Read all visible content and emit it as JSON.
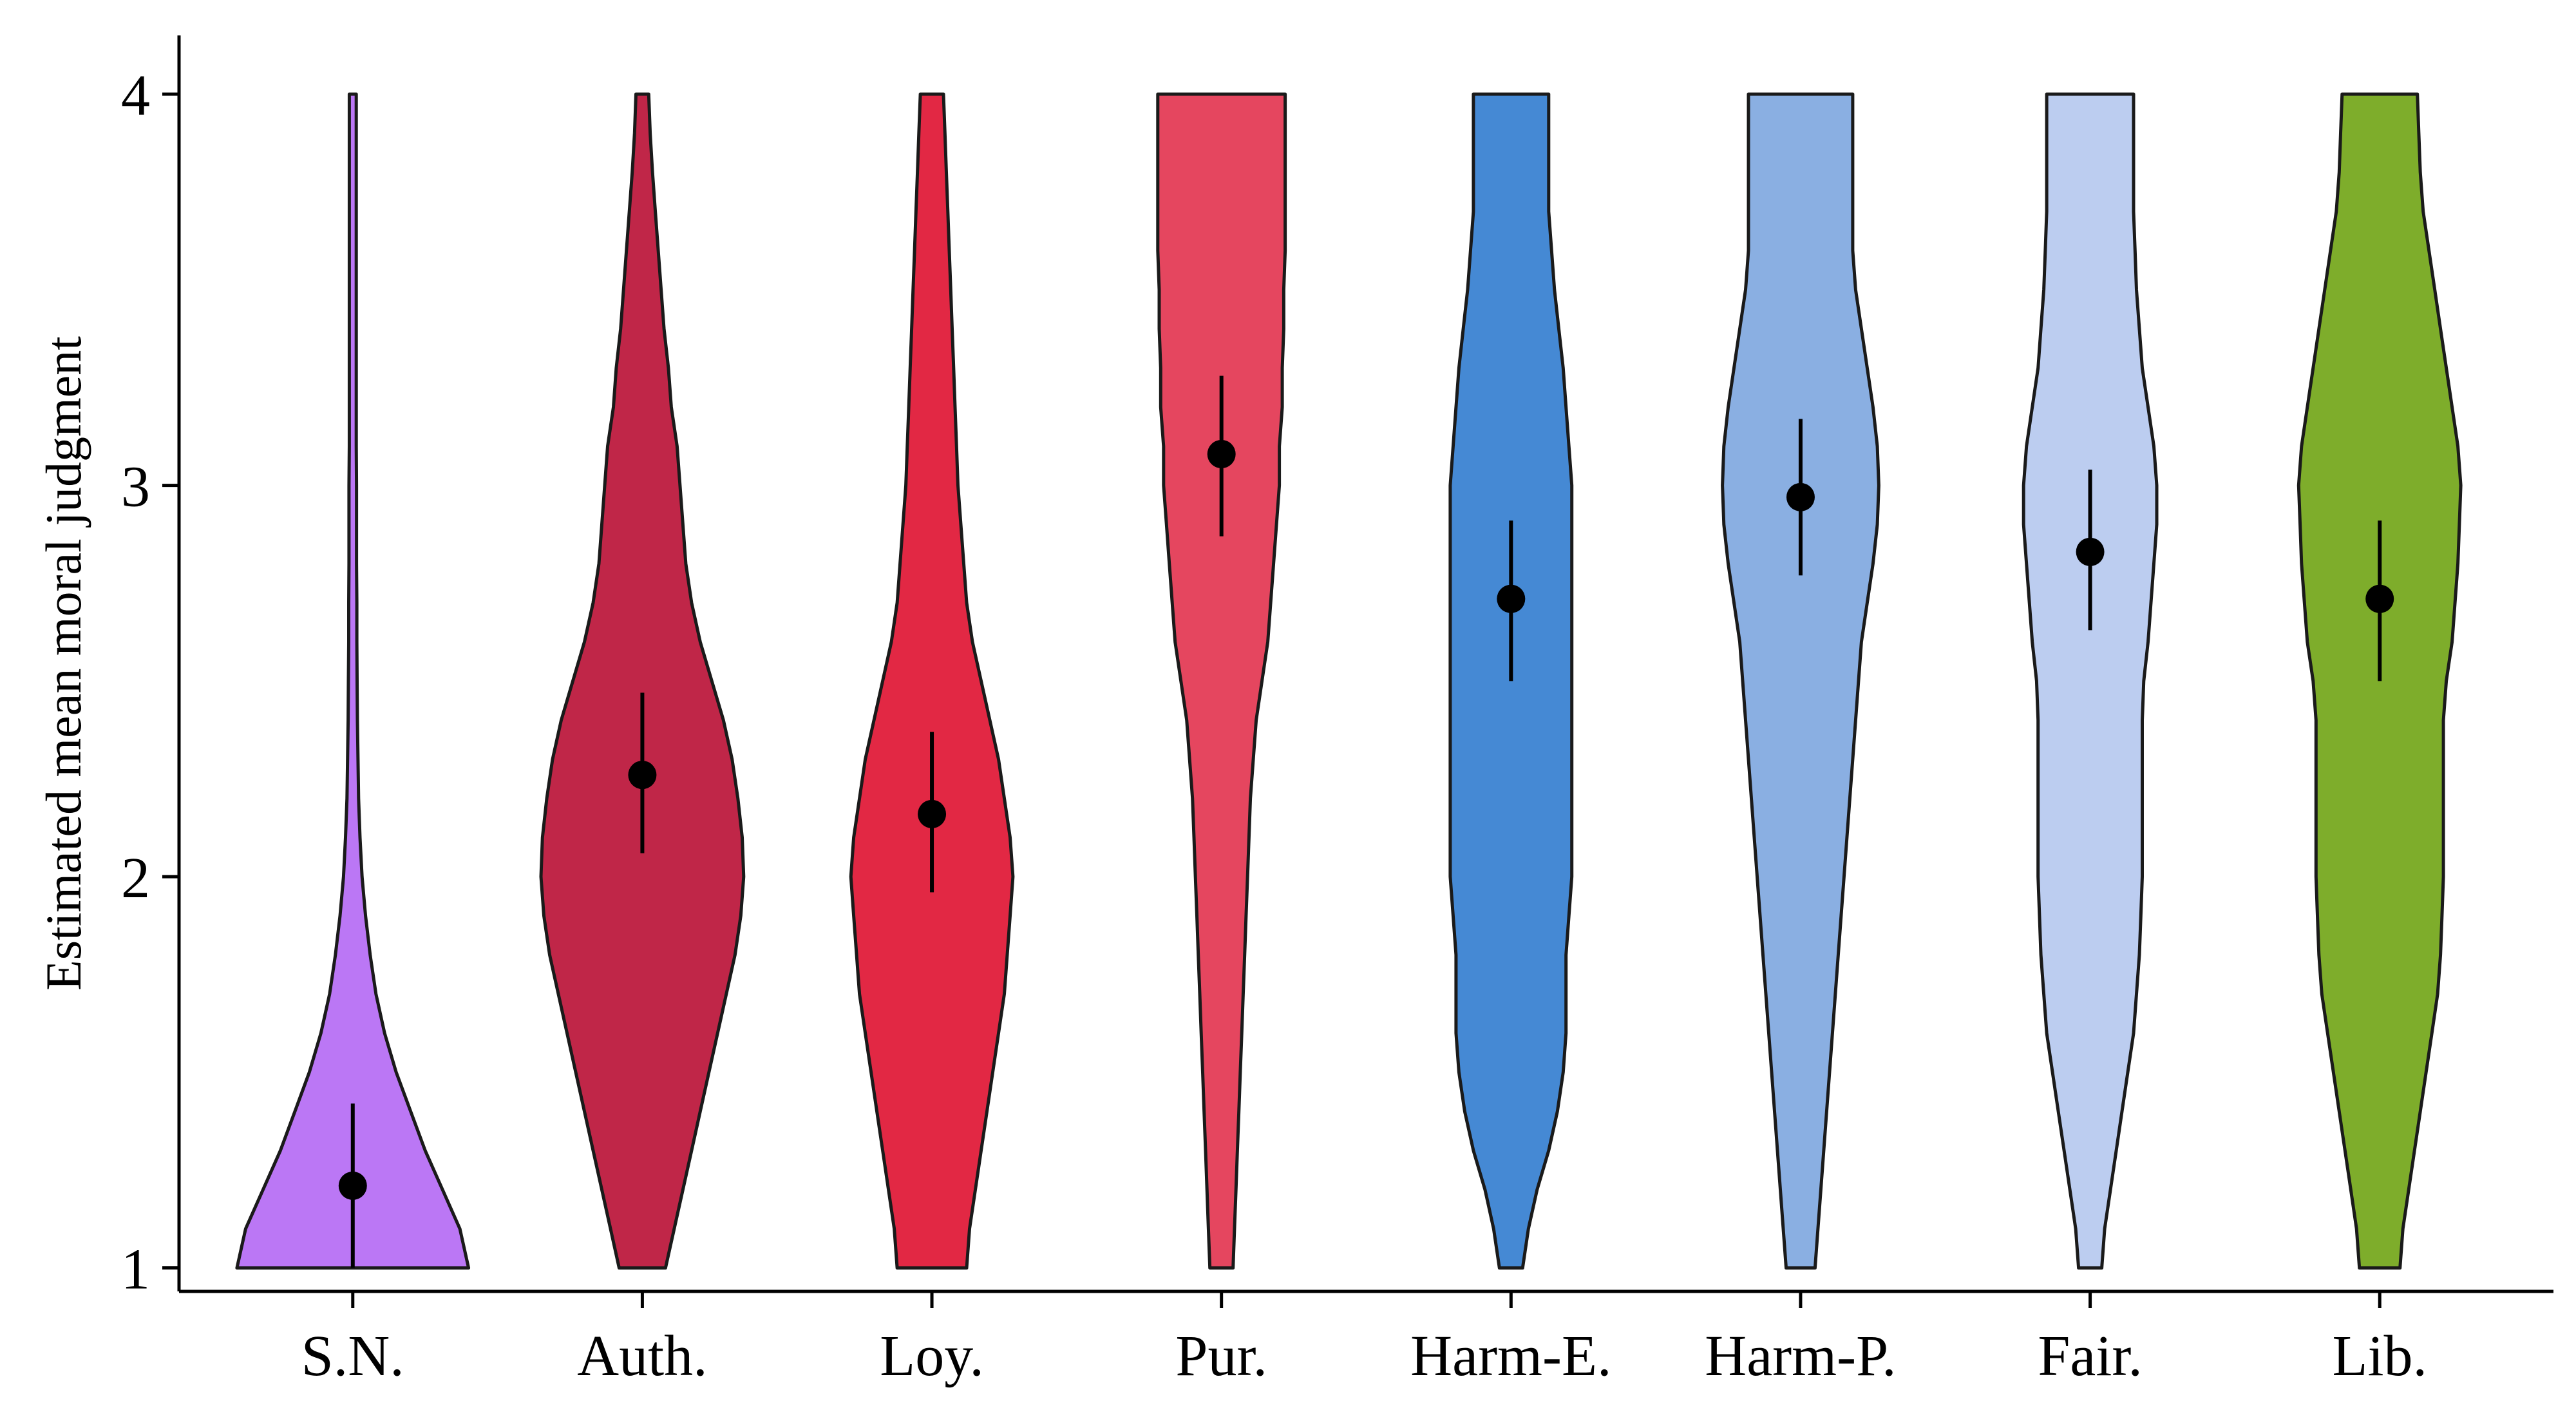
{
  "chart_data": {
    "type": "violin",
    "title": "",
    "xlabel": "",
    "ylabel": "Estimated mean moral judgment",
    "ylim": [
      0.94,
      4.15
    ],
    "yticks": [
      1,
      2,
      3,
      4
    ],
    "ytick_labels": [
      "1",
      "2",
      "3",
      "4"
    ],
    "grid": false,
    "legend": "none",
    "categories": [
      "S.N.",
      "Auth.",
      "Loy.",
      "Pur.",
      "Harm-E.",
      "Harm-P.",
      "Fair.",
      "Lib."
    ],
    "colors": [
      "#bb77f5",
      "#c02648",
      "#e22844",
      "#e5465f",
      "#4589d4",
      "#8aafe2",
      "#bccdf0",
      "#7ead2b"
    ],
    "means": [
      1.21,
      2.26,
      2.16,
      3.08,
      2.71,
      2.97,
      2.83,
      2.71
    ],
    "ci_low": [
      1.0,
      2.06,
      1.96,
      2.87,
      2.5,
      2.77,
      2.63,
      2.5
    ],
    "ci_high": [
      1.42,
      2.47,
      2.37,
      3.28,
      2.91,
      3.17,
      3.04,
      2.91
    ],
    "density_y": [
      1.0,
      1.1,
      1.2,
      1.3,
      1.4,
      1.5,
      1.6,
      1.7,
      1.8,
      1.9,
      2.0,
      2.1,
      2.2,
      2.3,
      2.4,
      2.5,
      2.6,
      2.7,
      2.8,
      2.9,
      3.0,
      3.1,
      3.2,
      3.3,
      3.4,
      3.5,
      3.6,
      3.7,
      3.8,
      3.9,
      4.0
    ],
    "violin_halfwidths": [
      [
        0.4,
        0.37,
        0.31,
        0.25,
        0.2,
        0.15,
        0.11,
        0.08,
        0.06,
        0.044,
        0.032,
        0.025,
        0.02,
        0.018,
        0.016,
        0.015,
        0.014,
        0.014,
        0.013,
        0.013,
        0.013,
        0.012,
        0.012,
        0.012,
        0.012,
        0.012,
        0.012,
        0.012,
        0.012,
        0.012,
        0.012
      ],
      [
        0.08,
        0.11,
        0.14,
        0.17,
        0.2,
        0.23,
        0.26,
        0.29,
        0.32,
        0.34,
        0.35,
        0.345,
        0.33,
        0.31,
        0.28,
        0.24,
        0.2,
        0.17,
        0.15,
        0.14,
        0.13,
        0.12,
        0.1,
        0.09,
        0.075,
        0.065,
        0.055,
        0.045,
        0.035,
        0.027,
        0.022
      ],
      [
        0.12,
        0.13,
        0.15,
        0.17,
        0.19,
        0.21,
        0.23,
        0.25,
        0.26,
        0.27,
        0.28,
        0.27,
        0.25,
        0.23,
        0.2,
        0.17,
        0.14,
        0.12,
        0.11,
        0.1,
        0.09,
        0.085,
        0.08,
        0.075,
        0.07,
        0.065,
        0.06,
        0.055,
        0.05,
        0.045,
        0.04
      ],
      [
        0.04,
        0.045,
        0.05,
        0.055,
        0.06,
        0.065,
        0.07,
        0.075,
        0.08,
        0.085,
        0.09,
        0.095,
        0.1,
        0.11,
        0.12,
        0.14,
        0.16,
        0.17,
        0.18,
        0.19,
        0.2,
        0.2,
        0.21,
        0.21,
        0.215,
        0.215,
        0.22,
        0.22,
        0.22,
        0.22,
        0.22
      ],
      [
        0.04,
        0.06,
        0.09,
        0.13,
        0.16,
        0.18,
        0.19,
        0.19,
        0.19,
        0.2,
        0.21,
        0.21,
        0.21,
        0.21,
        0.21,
        0.21,
        0.21,
        0.21,
        0.21,
        0.21,
        0.21,
        0.2,
        0.19,
        0.18,
        0.165,
        0.15,
        0.14,
        0.13,
        0.13,
        0.13,
        0.13
      ],
      [
        0.05,
        0.06,
        0.07,
        0.08,
        0.09,
        0.1,
        0.11,
        0.12,
        0.13,
        0.14,
        0.15,
        0.16,
        0.17,
        0.18,
        0.19,
        0.2,
        0.21,
        0.23,
        0.25,
        0.265,
        0.27,
        0.265,
        0.25,
        0.23,
        0.21,
        0.19,
        0.18,
        0.18,
        0.18,
        0.18,
        0.18
      ],
      [
        0.04,
        0.05,
        0.07,
        0.09,
        0.11,
        0.13,
        0.15,
        0.16,
        0.17,
        0.175,
        0.18,
        0.18,
        0.18,
        0.18,
        0.18,
        0.185,
        0.2,
        0.21,
        0.22,
        0.23,
        0.23,
        0.22,
        0.2,
        0.18,
        0.17,
        0.16,
        0.155,
        0.15,
        0.15,
        0.15,
        0.15
      ],
      [
        0.07,
        0.08,
        0.1,
        0.12,
        0.14,
        0.16,
        0.18,
        0.2,
        0.21,
        0.215,
        0.22,
        0.22,
        0.22,
        0.22,
        0.22,
        0.23,
        0.25,
        0.26,
        0.27,
        0.275,
        0.28,
        0.27,
        0.25,
        0.23,
        0.21,
        0.19,
        0.17,
        0.15,
        0.14,
        0.135,
        0.13
      ]
    ]
  }
}
